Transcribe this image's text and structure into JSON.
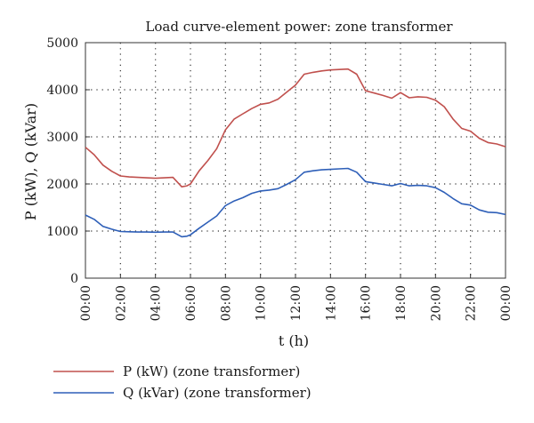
{
  "chart_data": {
    "type": "line",
    "title": "Load curve-element power: zone transformer",
    "xlabel": "t (h)",
    "ylabel": "P (kW), Q (kVar)",
    "xlim": [
      0,
      24
    ],
    "ylim": [
      0,
      5000
    ],
    "y_ticks": [
      "0",
      "1000",
      "2000",
      "3000",
      "4000",
      "5000"
    ],
    "x_ticks": [
      "00:00",
      "02:00",
      "04:00",
      "06:00",
      "08:00",
      "10:00",
      "12:00",
      "14:00",
      "16:00",
      "18:00",
      "20:00",
      "22:00",
      "00:00"
    ],
    "grid": true,
    "legend_placement": "bottom-left",
    "series": [
      {
        "name": "P (kW) (zone transformer)",
        "color": "#c0504d",
        "x": [
          0,
          0.5,
          1,
          1.5,
          2,
          2.5,
          3,
          3.5,
          4,
          4.5,
          5,
          5.5,
          5.8,
          6,
          6.5,
          7,
          7.5,
          8,
          8.5,
          9,
          9.5,
          10,
          10.5,
          11,
          11.5,
          12,
          12.5,
          13,
          13.5,
          14,
          14.5,
          15,
          15.5,
          16,
          16.5,
          17,
          17.5,
          18,
          18.5,
          19,
          19.5,
          20,
          20.5,
          21,
          21.5,
          22,
          22.5,
          23,
          23.5,
          24
        ],
        "values": [
          2780,
          2620,
          2400,
          2270,
          2170,
          2150,
          2140,
          2130,
          2120,
          2130,
          2140,
          1940,
          1960,
          2000,
          2280,
          2500,
          2750,
          3150,
          3380,
          3490,
          3600,
          3690,
          3720,
          3800,
          3950,
          4100,
          4330,
          4370,
          4400,
          4420,
          4430,
          4440,
          4330,
          3980,
          3930,
          3880,
          3820,
          3940,
          3830,
          3850,
          3840,
          3780,
          3640,
          3380,
          3180,
          3120,
          2970,
          2880,
          2850,
          2790
        ]
      },
      {
        "name": "Q (kVar) (zone transformer)",
        "color": "#2e5fb8",
        "x": [
          0,
          0.5,
          1,
          1.5,
          2,
          2.5,
          3,
          3.5,
          4,
          4.5,
          5,
          5.5,
          5.8,
          6,
          6.5,
          7,
          7.5,
          8,
          8.5,
          9,
          9.5,
          10,
          10.5,
          11,
          11.5,
          12,
          12.5,
          13,
          13.5,
          14,
          14.5,
          15,
          15.5,
          16,
          16.5,
          17,
          17.5,
          18,
          18.5,
          19,
          19.5,
          20,
          20.5,
          21,
          21.5,
          22,
          22.5,
          23,
          23.5,
          24
        ],
        "values": [
          1340,
          1250,
          1100,
          1040,
          990,
          985,
          980,
          980,
          975,
          980,
          980,
          880,
          890,
          920,
          1060,
          1190,
          1320,
          1540,
          1640,
          1710,
          1800,
          1850,
          1870,
          1900,
          1990,
          2090,
          2250,
          2280,
          2300,
          2310,
          2320,
          2330,
          2250,
          2050,
          2020,
          1990,
          1960,
          2010,
          1960,
          1970,
          1960,
          1920,
          1820,
          1690,
          1580,
          1550,
          1450,
          1400,
          1390,
          1350
        ]
      }
    ]
  }
}
